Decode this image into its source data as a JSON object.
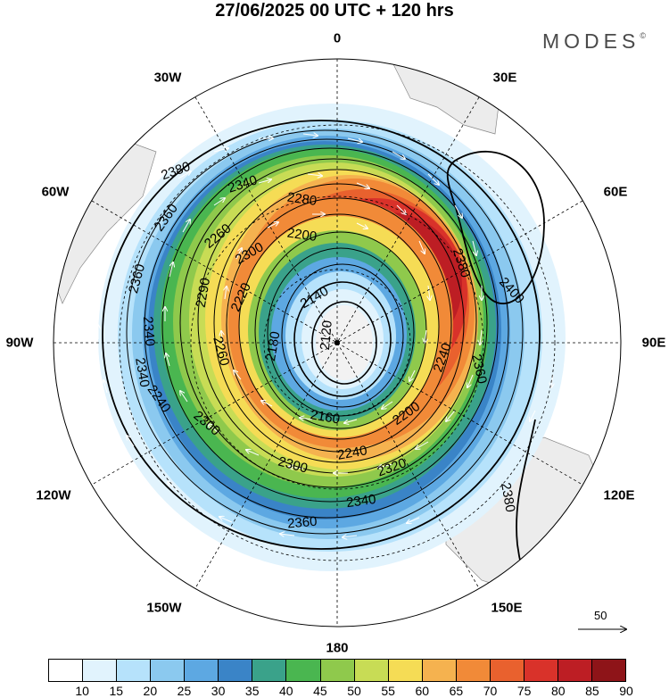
{
  "title": "27/06/2025  00 UTC  + 120 hrs",
  "brand": "MODES",
  "brand_mark": "©",
  "longitude_labels": {
    "lon_0": "0",
    "lon_30e": "30E",
    "lon_60e": "60E",
    "lon_90e": "90E",
    "lon_120e": "120E",
    "lon_150e": "150E",
    "lon_180": "180",
    "lon_150w": "150W",
    "lon_120w": "120W",
    "lon_90w": "90W",
    "lon_60w": "60W",
    "lon_30w": "30W"
  },
  "contour_labels": [
    "2380",
    "2340",
    "2360",
    "2280",
    "2260",
    "2200",
    "2300",
    "2360",
    "2380",
    "2400",
    "2340",
    "2290",
    "2220",
    "2140",
    "2120",
    "2180",
    "2260",
    "2340",
    "2240",
    "2300",
    "2160",
    "2240",
    "2200",
    "2360",
    "2320",
    "2300",
    "2240",
    "2340",
    "2380",
    "2360"
  ],
  "vector_scale_label": "50",
  "colorbar": {
    "ticks": [
      "10",
      "15",
      "20",
      "25",
      "30",
      "35",
      "40",
      "45",
      "50",
      "55",
      "60",
      "65",
      "70",
      "75",
      "80",
      "85",
      "90"
    ],
    "colors": [
      "#ffffff",
      "#e1f3fd",
      "#b6e2fb",
      "#8bc9ef",
      "#5da8e2",
      "#3a84c7",
      "#3aa28a",
      "#4ab650",
      "#8fc94c",
      "#c8dc55",
      "#f5dc55",
      "#f5b24f",
      "#f18a38",
      "#e9612e",
      "#d9322a",
      "#bd1e24",
      "#8e1418"
    ]
  }
}
